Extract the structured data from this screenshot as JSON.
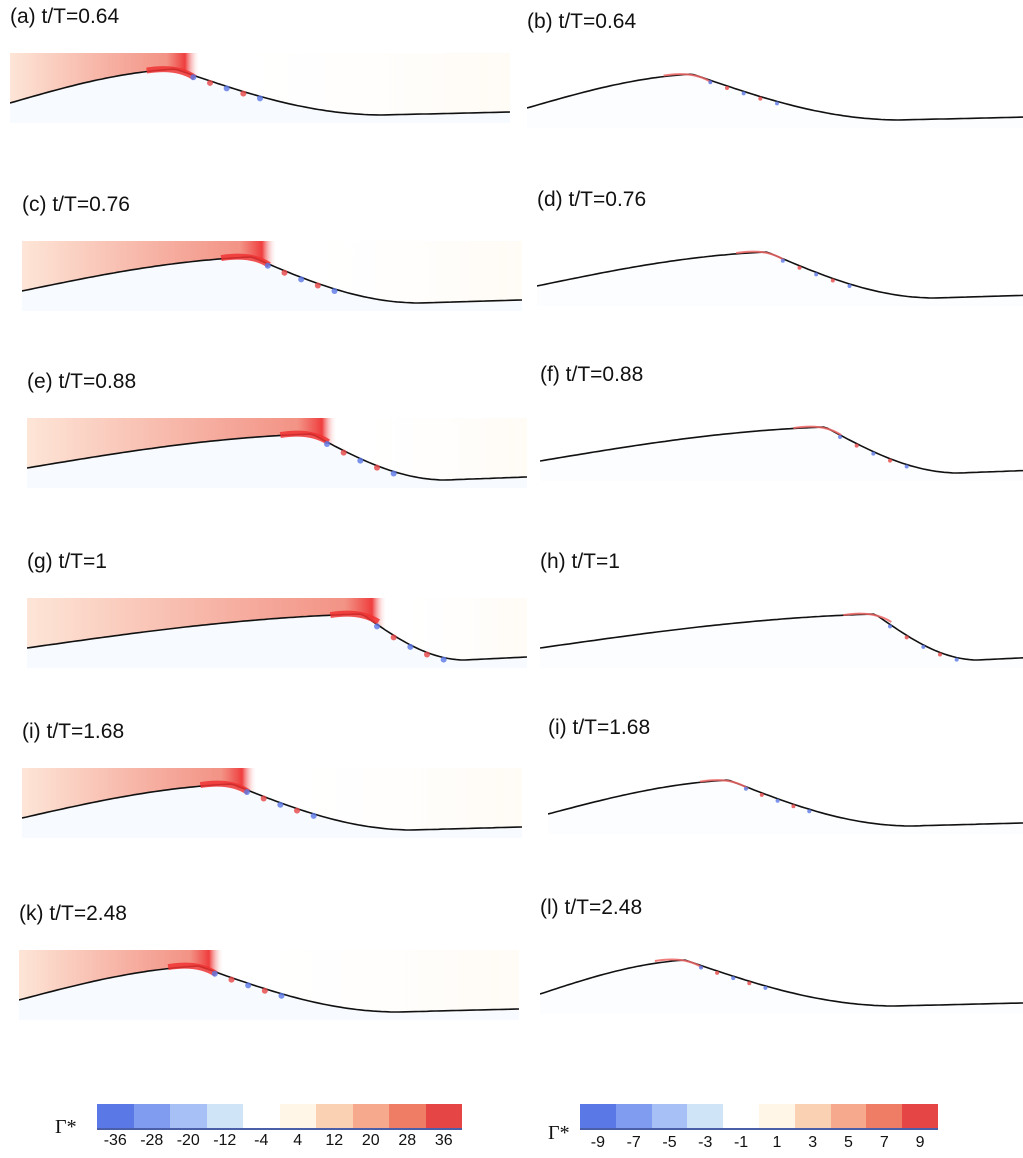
{
  "panels": [
    {
      "label": "(a) t/T=0.64"
    },
    {
      "label": "(b) t/T=0.64"
    },
    {
      "label": "(c) t/T=0.76"
    },
    {
      "label": "(d) t/T=0.76"
    },
    {
      "label": "(e) t/T=0.88"
    },
    {
      "label": "(f) t/T=0.88"
    },
    {
      "label": "(g) t/T=1"
    },
    {
      "label": "(h) t/T=1"
    },
    {
      "label": "(i) t/T=1.68"
    },
    {
      "label": "(i) t/T=1.68"
    },
    {
      "label": "(k) t/T=2.48"
    },
    {
      "label": "(l) t/T=2.48"
    }
  ],
  "colorbars": [
    {
      "symbol": "Γ*",
      "ticks": [
        "-36",
        "-28",
        "-20",
        "-12",
        "-4",
        "4",
        "12",
        "20",
        "28",
        "36"
      ],
      "colors": [
        "#5a78e6",
        "#7f9cf0",
        "#a7c0f5",
        "#d0e4f8",
        "#ffffff",
        "#fff6e8",
        "#fbd1b4",
        "#f6a98c",
        "#ef7d66",
        "#e64545"
      ]
    },
    {
      "symbol": "Γ*",
      "ticks": [
        "-9",
        "-7",
        "-5",
        "-3",
        "-1",
        "1",
        "3",
        "5",
        "7",
        "9"
      ],
      "colors": [
        "#5a78e6",
        "#7f9cf0",
        "#a7c0f5",
        "#d0e4f8",
        "#ffffff",
        "#fff6e8",
        "#fbd1b4",
        "#f6a98c",
        "#ef7d66",
        "#e64545"
      ]
    }
  ]
}
